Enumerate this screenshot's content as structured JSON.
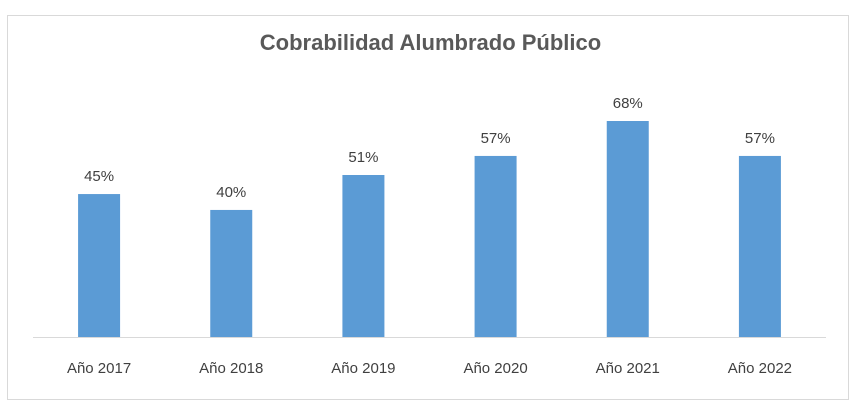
{
  "chart_data": {
    "type": "bar",
    "title": "Cobrabilidad Alumbrado Público",
    "xlabel": "",
    "ylabel": "",
    "categories": [
      "Año 2017",
      "Año 2018",
      "Año 2019",
      "Año 2020",
      "Año 2021",
      "Año 2022"
    ],
    "values": [
      45,
      40,
      51,
      57,
      68,
      57
    ],
    "data_labels": [
      "45%",
      "40%",
      "51%",
      "57%",
      "68%",
      "57%"
    ],
    "ylim": [
      0,
      68
    ],
    "grid": false,
    "legend": "none",
    "bar_color": "#5b9bd5",
    "axis_color": "#d9d9d9"
  }
}
